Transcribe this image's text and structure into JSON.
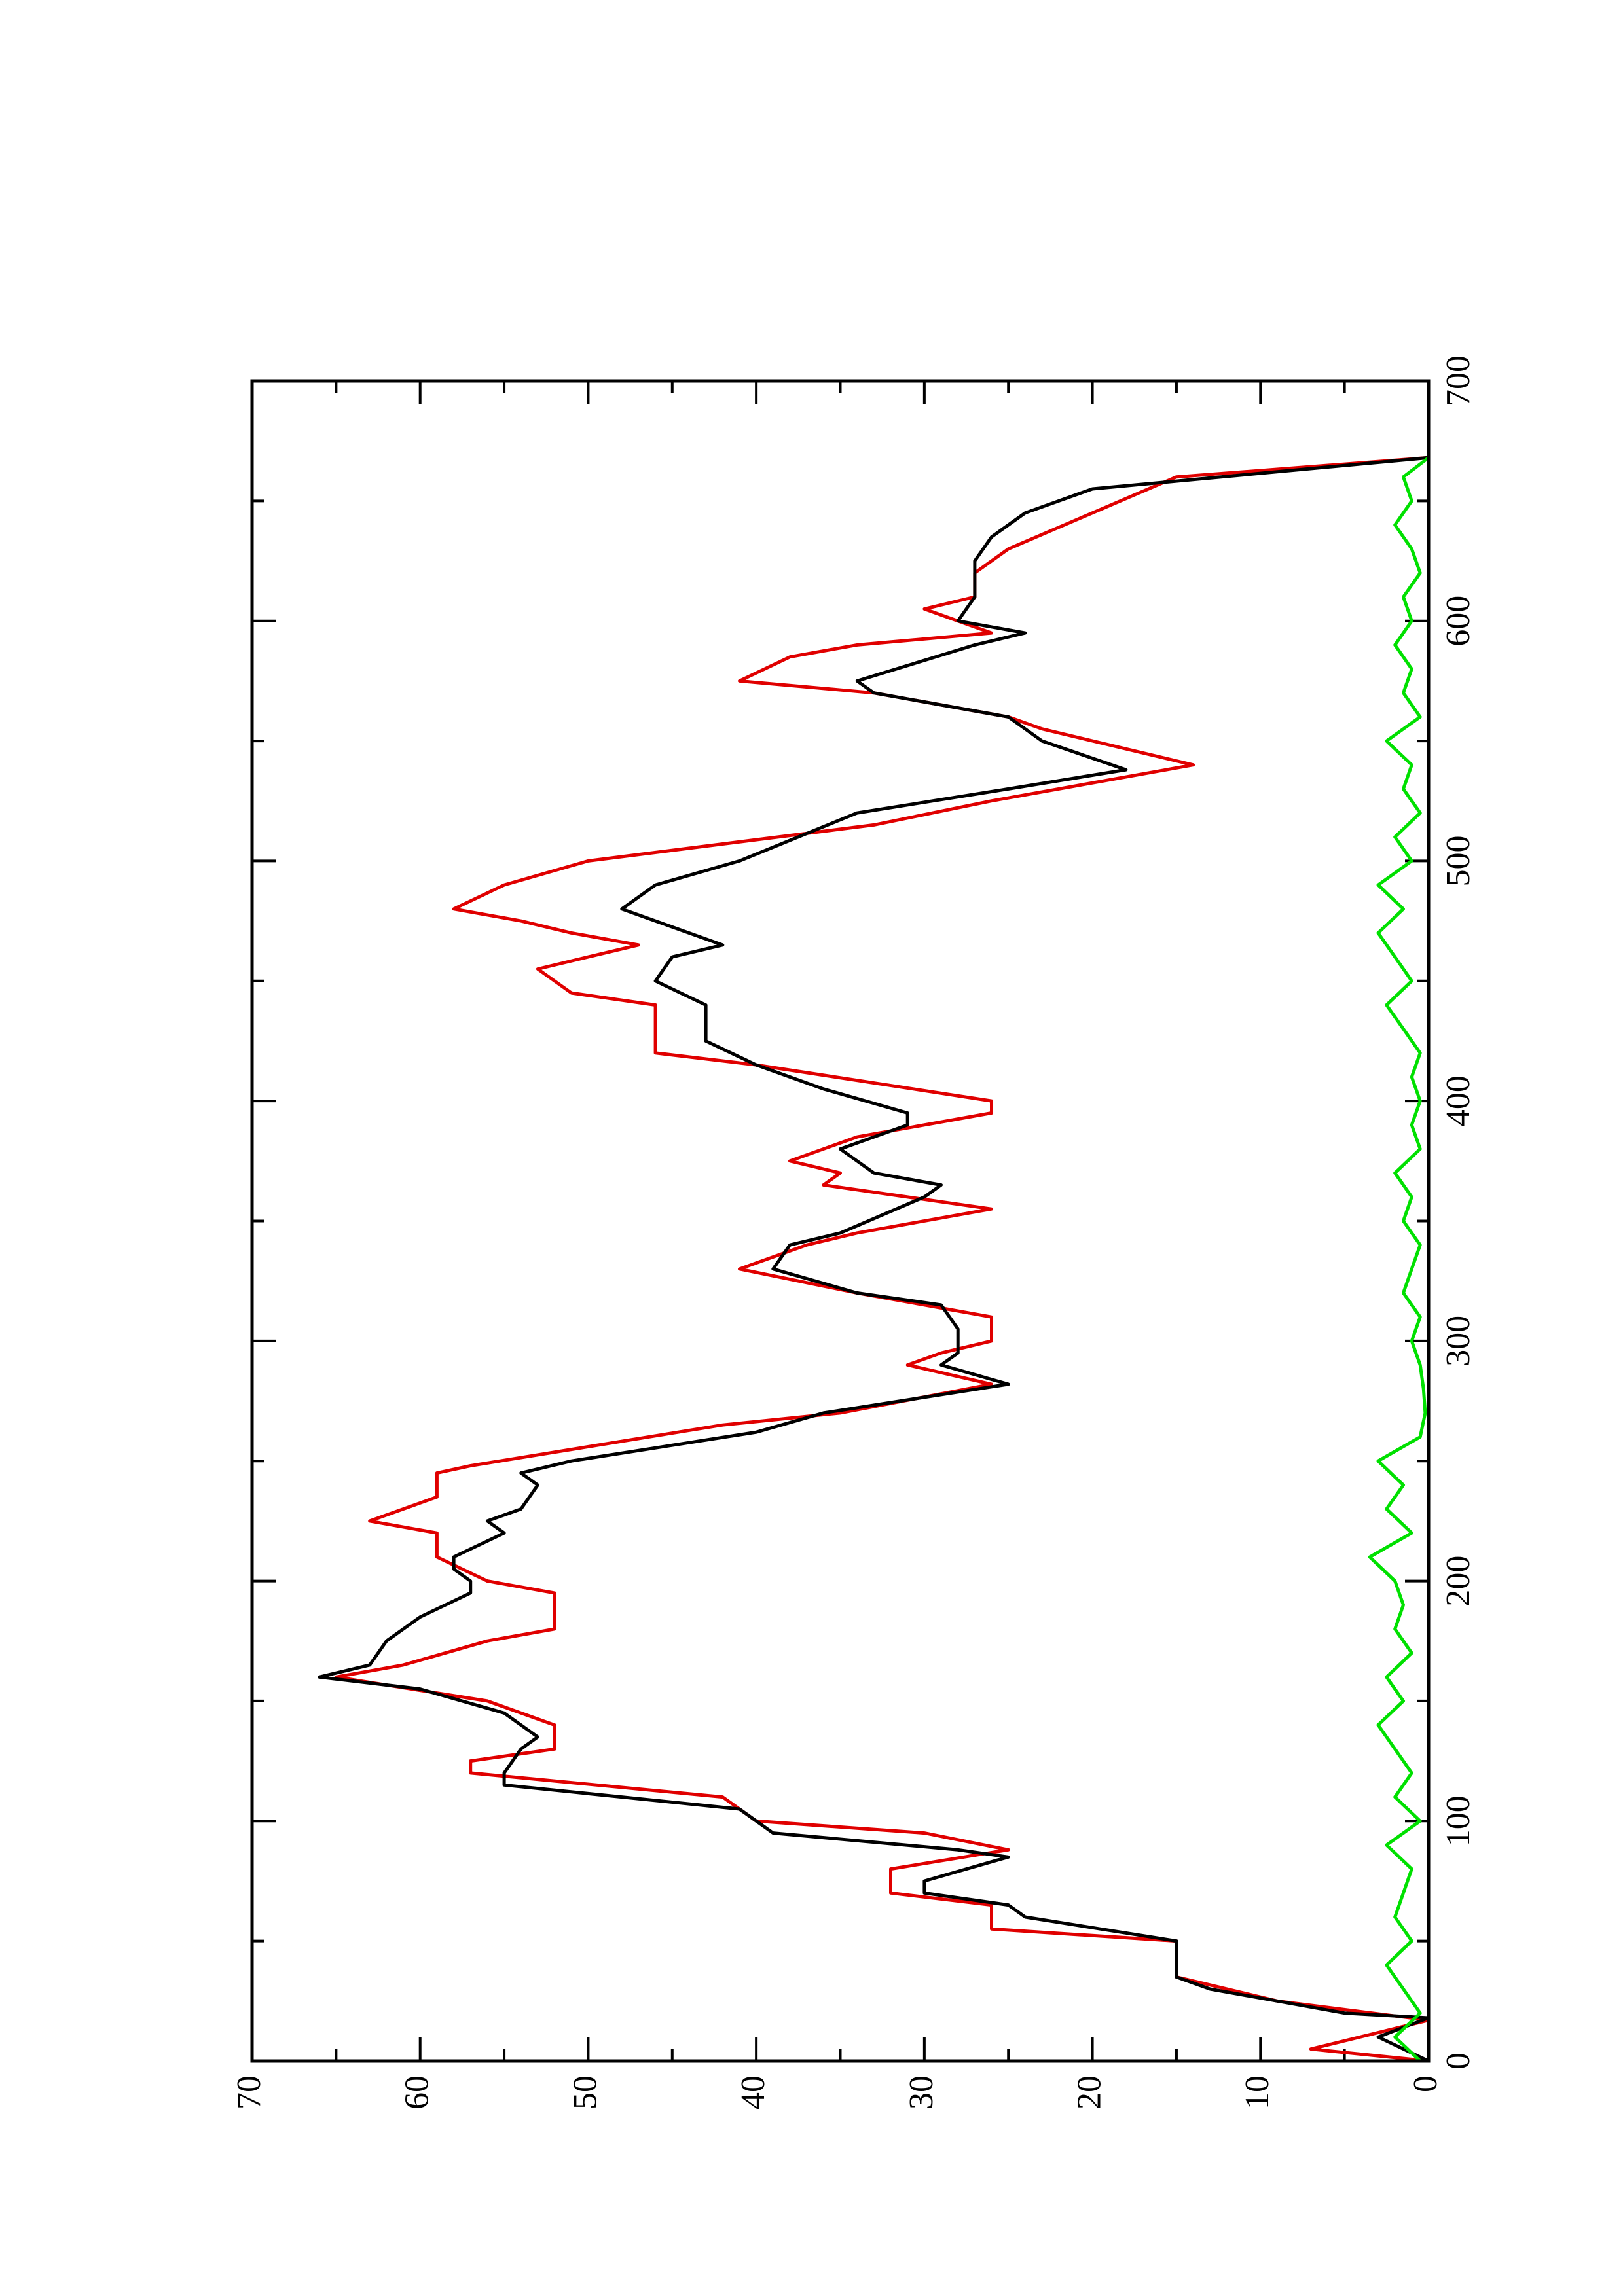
{
  "chart_data": {
    "type": "line",
    "xlim": [
      0,
      700
    ],
    "xticks": [
      0,
      100,
      200,
      300,
      400,
      500,
      600,
      700
    ],
    "xminorticks": [
      50,
      150,
      250,
      350,
      450,
      550,
      650
    ],
    "ylim": [
      0,
      70
    ],
    "yticks": [
      0,
      10,
      20,
      30,
      40,
      50,
      60,
      70
    ],
    "yminorticks": [
      5,
      15,
      25,
      35,
      45,
      55,
      65
    ],
    "series": [
      {
        "color": "#e00000",
        "x": [
          0,
          5,
          17,
          25,
          35,
          50,
          55,
          65,
          70,
          80,
          88,
          95,
          100,
          110,
          120,
          125,
          130,
          140,
          150,
          160,
          165,
          175,
          180,
          195,
          200,
          210,
          220,
          225,
          235,
          245,
          248,
          265,
          270,
          282,
          290,
          295,
          300,
          310,
          320,
          330,
          335,
          340,
          345,
          355,
          365,
          370,
          375,
          385,
          395,
          400,
          415,
          420,
          440,
          445,
          455,
          460,
          465,
          470,
          475,
          480,
          490,
          500,
          515,
          525,
          540,
          555,
          560,
          570,
          575,
          585,
          590,
          595,
          605,
          610,
          620,
          630,
          645,
          660,
          668
        ],
        "values": [
          0,
          7,
          0,
          9,
          15,
          15,
          26,
          26,
          32,
          32,
          25,
          30,
          40,
          42,
          57,
          57,
          52,
          52,
          56,
          65,
          61,
          56,
          52,
          52,
          56,
          59,
          59,
          63,
          59,
          59,
          57,
          42,
          35,
          26,
          31,
          29,
          26,
          26,
          34,
          41,
          39,
          37,
          34,
          26,
          36,
          35,
          38,
          34,
          26,
          26,
          40,
          46,
          46,
          51,
          53,
          50,
          47,
          51,
          54,
          58,
          55,
          50,
          33,
          26,
          14,
          23,
          25,
          33,
          41,
          38,
          34,
          26,
          30,
          27,
          27,
          25,
          20,
          15,
          0
        ]
      },
      {
        "color": "#000000",
        "x": [
          0,
          10,
          18,
          20,
          30,
          35,
          45,
          50,
          60,
          65,
          70,
          75,
          85,
          88,
          95,
          105,
          115,
          120,
          130,
          135,
          145,
          155,
          160,
          165,
          175,
          185,
          195,
          200,
          205,
          210,
          220,
          225,
          230,
          240,
          245,
          250,
          262,
          270,
          282,
          290,
          295,
          305,
          315,
          320,
          330,
          340,
          345,
          360,
          365,
          370,
          380,
          390,
          395,
          405,
          415,
          425,
          435,
          440,
          450,
          460,
          465,
          475,
          480,
          490,
          500,
          520,
          530,
          538,
          550,
          560,
          570,
          575,
          590,
          595,
          600,
          610,
          625,
          635,
          645,
          655,
          668
        ],
        "values": [
          0,
          3,
          0,
          5,
          13,
          15,
          15,
          15,
          24,
          25,
          30,
          30,
          25,
          28,
          39,
          41,
          55,
          55,
          54,
          53,
          55,
          60,
          66,
          63,
          62,
          60,
          57,
          57,
          58,
          58,
          55,
          56,
          54,
          53,
          54,
          51,
          40,
          36,
          25,
          29,
          28,
          28,
          29,
          34,
          39,
          38,
          35,
          30,
          29,
          33,
          35,
          31,
          31,
          36,
          40,
          43,
          43,
          43,
          46,
          45,
          42,
          46,
          48,
          46,
          41,
          34,
          25,
          18,
          23,
          25,
          33,
          34,
          27,
          24,
          28,
          27,
          27,
          26,
          24,
          20,
          0
        ]
      },
      {
        "color": "#00e000",
        "x": [
          0,
          10,
          20,
          30,
          40,
          50,
          60,
          70,
          80,
          90,
          100,
          110,
          120,
          130,
          140,
          150,
          160,
          170,
          180,
          190,
          200,
          210,
          220,
          230,
          240,
          250,
          260,
          270,
          280,
          290,
          300,
          310,
          320,
          330,
          340,
          350,
          360,
          370,
          380,
          390,
          400,
          410,
          420,
          430,
          440,
          450,
          460,
          470,
          480,
          490,
          500,
          510,
          520,
          530,
          540,
          550,
          560,
          570,
          580,
          590,
          600,
          610,
          620,
          630,
          640,
          650,
          660,
          668
        ],
        "values": [
          0.5,
          2,
          0.5,
          1.5,
          2.5,
          1,
          2,
          1.5,
          1,
          2.5,
          0.5,
          2,
          1,
          2,
          3,
          1.5,
          2.5,
          1,
          2,
          1.5,
          2,
          3.5,
          1,
          2.5,
          1.5,
          3,
          0.5,
          0.2,
          0.3,
          0.5,
          1,
          0.5,
          1.5,
          1,
          0.5,
          1.5,
          1,
          2,
          0.5,
          1,
          0.5,
          1,
          0.5,
          1.5,
          2.5,
          1,
          2,
          3,
          1.5,
          3,
          1,
          2,
          0.5,
          1.5,
          1,
          2.5,
          0.5,
          1.5,
          1,
          2,
          1,
          1.5,
          0.5,
          1,
          2,
          1,
          1.5,
          0
        ]
      }
    ]
  }
}
